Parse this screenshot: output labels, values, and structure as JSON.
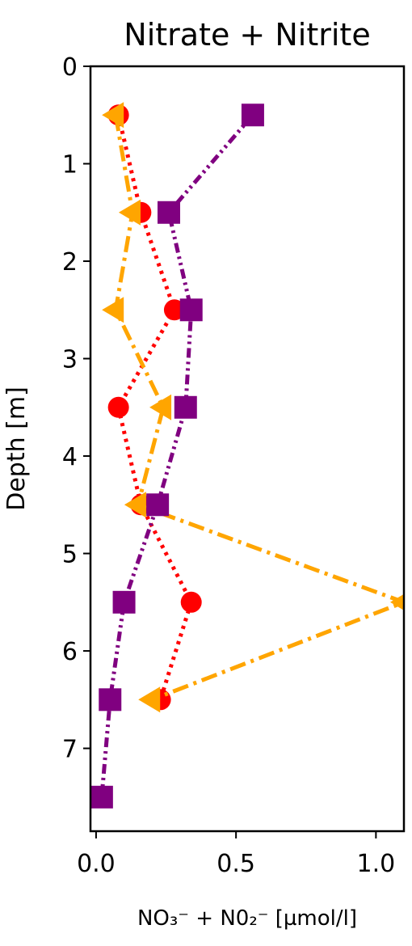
{
  "chart_data": {
    "type": "scatter",
    "title": "Nitrate + Nitrite",
    "xlabel": "NO₃⁻ + N0₂⁻ [µmol/l]",
    "ylabel": "Depth [m]",
    "xlim": [
      -0.02,
      1.1
    ],
    "ylim": [
      7.85,
      0
    ],
    "y_inverted": true,
    "grid": false,
    "xticks": [
      "0.0",
      "0.5",
      "1.0"
    ],
    "yticks": [
      "0",
      "1",
      "2",
      "3",
      "4",
      "5",
      "6",
      "7"
    ],
    "xtick_values": [
      0.0,
      0.5,
      1.0
    ],
    "ytick_values": [
      0,
      1,
      2,
      3,
      4,
      5,
      6,
      7
    ],
    "series": [
      {
        "marker": "circle",
        "color": "#ff0000",
        "linestyle": "dotted",
        "points": [
          {
            "x": 0.08,
            "y": 0.5
          },
          {
            "x": 0.16,
            "y": 1.5
          },
          {
            "x": 0.28,
            "y": 2.5
          },
          {
            "x": 0.08,
            "y": 3.5
          },
          {
            "x": 0.16,
            "y": 4.5
          },
          {
            "x": 0.34,
            "y": 5.5
          },
          {
            "x": 0.23,
            "y": 6.5
          }
        ]
      },
      {
        "marker": "triangle-left",
        "color": "#ffa500",
        "linestyle": "dashdot",
        "points": [
          {
            "x": 0.07,
            "y": 0.5
          },
          {
            "x": 0.13,
            "y": 1.5
          },
          {
            "x": 0.07,
            "y": 2.5
          },
          {
            "x": 0.24,
            "y": 3.5
          },
          {
            "x": 0.15,
            "y": 4.5
          },
          {
            "x": 1.1,
            "y": 5.5
          },
          {
            "x": 0.2,
            "y": 6.5
          }
        ]
      },
      {
        "marker": "square",
        "color": "#800080",
        "linestyle": "dashdotdot",
        "points": [
          {
            "x": 0.56,
            "y": 0.5
          },
          {
            "x": 0.26,
            "y": 1.5
          },
          {
            "x": 0.34,
            "y": 2.5
          },
          {
            "x": 0.32,
            "y": 3.5
          },
          {
            "x": 0.22,
            "y": 4.5
          },
          {
            "x": 0.1,
            "y": 5.5
          },
          {
            "x": 0.05,
            "y": 6.5
          },
          {
            "x": 0.02,
            "y": 7.5
          }
        ]
      }
    ]
  }
}
